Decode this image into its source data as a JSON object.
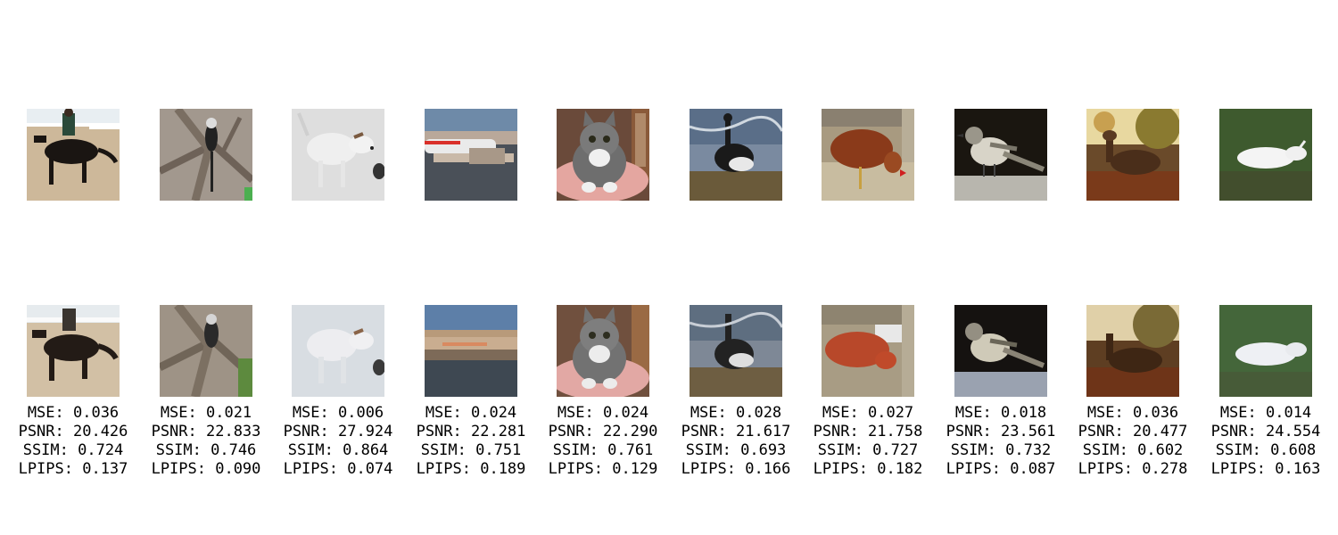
{
  "figure": {
    "columns": [
      {
        "subject": "horse-rider",
        "metrics": {
          "mse": "MSE: 0.036",
          "psnr": "PSNR: 20.426",
          "ssim": "SSIM: 0.724",
          "lpips": "LPIPS: 0.137"
        }
      },
      {
        "subject": "monkey-on-branch",
        "metrics": {
          "mse": "MSE: 0.021",
          "psnr": "PSNR: 22.833",
          "ssim": "SSIM: 0.746",
          "lpips": "LPIPS: 0.090"
        }
      },
      {
        "subject": "white-dog",
        "metrics": {
          "mse": "MSE: 0.006",
          "psnr": "PSNR: 27.924",
          "ssim": "SSIM: 0.864",
          "lpips": "LPIPS: 0.074"
        }
      },
      {
        "subject": "airplane",
        "metrics": {
          "mse": "MSE: 0.024",
          "psnr": "PSNR: 22.281",
          "ssim": "SSIM: 0.751",
          "lpips": "LPIPS: 0.189"
        }
      },
      {
        "subject": "tabby-cat",
        "metrics": {
          "mse": "MSE: 0.024",
          "psnr": "PSNR: 22.290",
          "ssim": "SSIM: 0.761",
          "lpips": "LPIPS: 0.129"
        }
      },
      {
        "subject": "duck-in-water",
        "metrics": {
          "mse": "MSE: 0.028",
          "psnr": "PSNR: 21.617",
          "ssim": "SSIM: 0.693",
          "lpips": "LPIPS: 0.166"
        }
      },
      {
        "subject": "hen-on-fence",
        "metrics": {
          "mse": "MSE: 0.027",
          "psnr": "PSNR: 21.758",
          "ssim": "SSIM: 0.727",
          "lpips": "LPIPS: 0.182"
        }
      },
      {
        "subject": "mockingbird",
        "metrics": {
          "mse": "MSE: 0.018",
          "psnr": "PSNR: 23.561",
          "ssim": "SSIM: 0.732",
          "lpips": "LPIPS: 0.087"
        }
      },
      {
        "subject": "deer-in-autumn",
        "metrics": {
          "mse": "MSE: 0.036",
          "psnr": "PSNR: 20.477",
          "ssim": "SSIM: 0.602",
          "lpips": "LPIPS: 0.278"
        }
      },
      {
        "subject": "white-deer-on-grass",
        "metrics": {
          "mse": "MSE: 0.014",
          "psnr": "PSNR: 24.554",
          "ssim": "SSIM: 0.608",
          "lpips": "LPIPS: 0.163"
        }
      }
    ]
  }
}
